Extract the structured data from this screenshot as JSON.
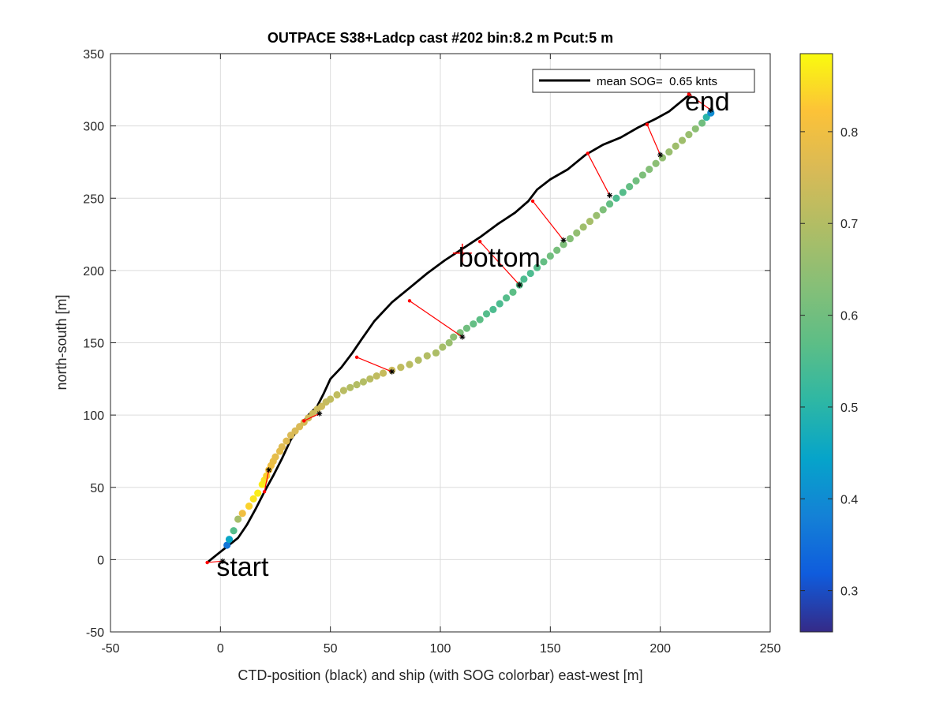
{
  "chart_data": {
    "type": "scatter",
    "title": "OUTPACE S38+Ladcp cast #202 bin:8.2 m  Pcut:5 m",
    "xlabel": "CTD-position (black) and ship (with SOG colorbar) east-west [m]",
    "ylabel": "north-south [m]",
    "xlim": [
      -50,
      250
    ],
    "ylim": [
      -50,
      350
    ],
    "xticks": [
      -50,
      0,
      50,
      100,
      150,
      200,
      250
    ],
    "yticks": [
      -50,
      0,
      50,
      100,
      150,
      200,
      250,
      300,
      350
    ],
    "grid": true,
    "legend": {
      "position": "top-right",
      "entries": [
        "mean SOG=  0.65 knts"
      ]
    },
    "annotations": [
      {
        "text": "start",
        "x": 0,
        "y": -2
      },
      {
        "text": "bottom",
        "x": 110,
        "y": 212
      },
      {
        "text": "end",
        "x": 213,
        "y": 320
      }
    ],
    "colorbar": {
      "range": [
        0.255,
        0.885
      ],
      "ticks": [
        "0.3",
        "0.4",
        "0.5",
        "0.6",
        "0.7",
        "0.8"
      ],
      "tick_values": [
        0.3,
        0.4,
        0.5,
        0.6,
        0.7,
        0.8
      ],
      "colormap": "parula"
    },
    "series": [
      {
        "name": "mean SOG=  0.65 knts",
        "kind": "line",
        "color": "#000000",
        "x": [
          -6,
          -2,
          3,
          8,
          12,
          16,
          20,
          24,
          28,
          32,
          36,
          40,
          44,
          47,
          50,
          55,
          60,
          64,
          70,
          78,
          86,
          94,
          102,
          110,
          118,
          126,
          134,
          140,
          144,
          150,
          158,
          166,
          174,
          182,
          190,
          198,
          204,
          208,
          212,
          214
        ],
        "y": [
          -2,
          3,
          9,
          15,
          24,
          35,
          47,
          58,
          70,
          83,
          92,
          100,
          106,
          115,
          125,
          133,
          143,
          152,
          165,
          178,
          188,
          198,
          207,
          215,
          223,
          232,
          240,
          248,
          256,
          263,
          270,
          280,
          287,
          292,
          299,
          305,
          310,
          315,
          320,
          322
        ]
      },
      {
        "name": "",
        "kind": "ship-points",
        "x": [
          3,
          4,
          6,
          8,
          10,
          13,
          15,
          17,
          19,
          20,
          21,
          22,
          23,
          24,
          25,
          27,
          28,
          30,
          32,
          34,
          36,
          38,
          40,
          42,
          44,
          46,
          48,
          50,
          53,
          56,
          59,
          62,
          65,
          68,
          71,
          74,
          78,
          82,
          86,
          90,
          94,
          98,
          101,
          104,
          106,
          109,
          112,
          115,
          118,
          121,
          124,
          127,
          130,
          133,
          136,
          138,
          141,
          144,
          147,
          150,
          153,
          156,
          159,
          162,
          165,
          168,
          171,
          174,
          177,
          180,
          183,
          186,
          189,
          192,
          195,
          198,
          201,
          204,
          207,
          210,
          213,
          216,
          219,
          221,
          223
        ],
        "y": [
          10,
          14,
          20,
          28,
          32,
          37,
          42,
          46,
          52,
          55,
          58,
          62,
          65,
          68,
          71,
          75,
          78,
          82,
          86,
          89,
          92,
          95,
          98,
          101,
          104,
          106,
          109,
          111,
          114,
          117,
          119,
          121,
          123,
          125,
          127,
          129,
          131,
          133,
          135,
          138,
          141,
          143,
          147,
          150,
          154,
          157,
          160,
          163,
          166,
          170,
          173,
          177,
          181,
          185,
          190,
          194,
          198,
          202,
          206,
          210,
          214,
          218,
          222,
          226,
          230,
          234,
          238,
          242,
          246,
          250,
          254,
          258,
          262,
          266,
          270,
          274,
          278,
          282,
          286,
          290,
          294,
          298,
          302,
          306,
          309
        ],
        "sog": [
          0.36,
          0.45,
          0.56,
          0.68,
          0.8,
          0.84,
          0.86,
          0.87,
          0.87,
          0.86,
          0.84,
          0.82,
          0.8,
          0.79,
          0.78,
          0.78,
          0.77,
          0.77,
          0.76,
          0.76,
          0.76,
          0.75,
          0.75,
          0.74,
          0.74,
          0.74,
          0.73,
          0.72,
          0.72,
          0.71,
          0.7,
          0.7,
          0.7,
          0.71,
          0.72,
          0.73,
          0.74,
          0.72,
          0.71,
          0.7,
          0.7,
          0.69,
          0.68,
          0.66,
          0.64,
          0.62,
          0.6,
          0.58,
          0.57,
          0.56,
          0.55,
          0.55,
          0.56,
          0.57,
          0.56,
          0.55,
          0.55,
          0.56,
          0.58,
          0.6,
          0.61,
          0.62,
          0.63,
          0.65,
          0.67,
          0.68,
          0.66,
          0.62,
          0.58,
          0.55,
          0.56,
          0.58,
          0.6,
          0.62,
          0.63,
          0.64,
          0.65,
          0.66,
          0.67,
          0.67,
          0.66,
          0.64,
          0.6,
          0.5,
          0.4
        ]
      },
      {
        "name": "",
        "kind": "offset-segments",
        "color": "#ff0000",
        "segments": [
          {
            "ctd": [
              -6,
              -2
            ],
            "ship": [
              1,
              -1
            ]
          },
          {
            "ctd": [
              20,
              47
            ],
            "ship": [
              22,
              62
            ]
          },
          {
            "ctd": [
              38,
              96
            ],
            "ship": [
              45,
              101
            ]
          },
          {
            "ctd": [
              62,
              140
            ],
            "ship": [
              78,
              130
            ]
          },
          {
            "ctd": [
              86,
              179
            ],
            "ship": [
              110,
              154
            ]
          },
          {
            "ctd": [
              118,
              220
            ],
            "ship": [
              136,
              190
            ]
          },
          {
            "ctd": [
              142,
              248
            ],
            "ship": [
              156,
              221
            ]
          },
          {
            "ctd": [
              167,
              281
            ],
            "ship": [
              177,
              252
            ]
          },
          {
            "ctd": [
              194,
              301
            ],
            "ship": [
              200,
              280
            ]
          },
          {
            "ctd": [
              213,
              322
            ],
            "ship": [
              223,
              311
            ]
          }
        ]
      }
    ]
  }
}
